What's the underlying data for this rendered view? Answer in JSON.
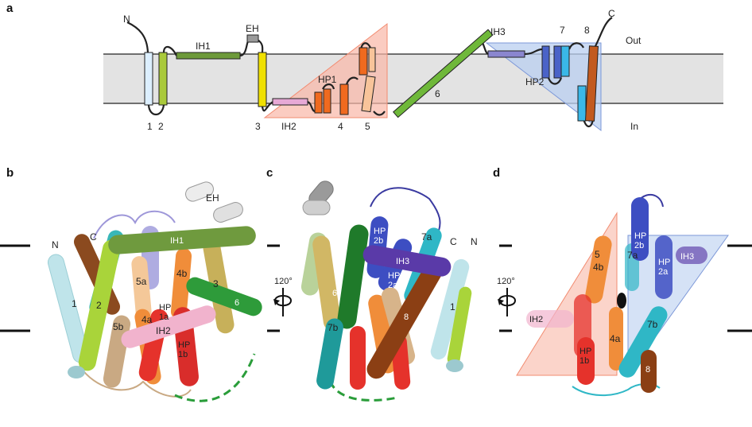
{
  "panels": {
    "a": {
      "letter": "a",
      "n_term": "N",
      "c_term": "C",
      "side_out": "Out",
      "side_in": "In",
      "helix_labels": {
        "h1": "1",
        "h2": "2",
        "h3": "3",
        "h4": "4",
        "h5": "5",
        "h6": "6",
        "h7": "7",
        "h8": "8",
        "ih1": "IH1",
        "ih2": "IH2",
        "ih3": "IH3",
        "eh": "EH",
        "hp1": "HP1",
        "hp2": "HP2"
      },
      "colors": {
        "h1": "#dcefff",
        "h2": "#a9c93a",
        "ih1": "#6d9a3a",
        "eh": "#9a9a9a",
        "h3": "#f0e000",
        "ih2": "#e7a9d6",
        "hp1": "#f06a1f",
        "h4": "#f06a1f",
        "h5": "#f8c49a",
        "h6": "#6fb83a",
        "ih3": "#8a86cf",
        "hp2": "#4a63c8",
        "h7": "#3ab8e8",
        "h8": "#c25a1f",
        "membrane": "#e3e3e3",
        "triangle_left": "#f9b7a6",
        "triangle_right": "#b9cff0"
      }
    },
    "b": {
      "letter": "b",
      "n_term": "N",
      "c_term": "C",
      "labels": {
        "eh": "EH",
        "ih1": "IH1",
        "h1": "1",
        "h2": "2",
        "h3": "3",
        "h5a": "5a",
        "h4b": "4b",
        "h5b": "5b",
        "h4a": "4a",
        "h6": "6",
        "ih2": "IH2",
        "hp1a": "HP\n1a",
        "hp1b": "HP\n1b"
      }
    },
    "c": {
      "letter": "c",
      "n_term": "N",
      "c_term": "C",
      "rotation": "120°",
      "labels": {
        "hp2b": "HP\n2b",
        "hp2a": "HP\n2a",
        "ih3": "IH3",
        "h7a": "7a",
        "h6": "6",
        "h8": "8",
        "h1": "1",
        "h7b": "7b"
      }
    },
    "d": {
      "letter": "d",
      "rotation": "120°",
      "labels": {
        "h5": "5",
        "h4b": "4b",
        "h7a": "7a",
        "hp2b": "HP\n2b",
        "hp2a": "HP\n2a",
        "ih3": "IH3",
        "ih2": "IH2",
        "hp1b": "HP\n1b",
        "h4a": "4a",
        "h7b": "7b",
        "h8": "8"
      }
    }
  }
}
